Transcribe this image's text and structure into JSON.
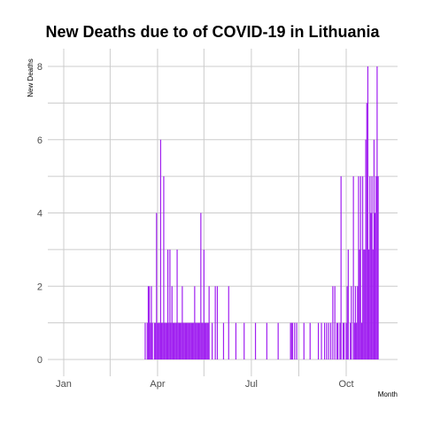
{
  "chart_data": {
    "type": "bar",
    "title": "New Deaths due to of COVID-19 in Lithuania",
    "xlabel": "Month",
    "ylabel": "New Deaths",
    "x_ticks": [
      "Jan",
      "Apr",
      "Jul",
      "Oct"
    ],
    "y_ticks": [
      "0",
      "2",
      "4",
      "6",
      "8"
    ],
    "ylim": [
      0,
      8
    ],
    "grid": true,
    "bar_color": "#a020f0",
    "grid_color": "#cccccc",
    "series": [
      {
        "x": [
          "2020-03-20",
          "2020-03-22",
          "2020-03-23",
          "2020-03-24",
          "2020-03-25",
          "2020-03-26",
          "2020-03-27",
          "2020-03-29",
          "2020-03-30",
          "2020-03-31",
          "2020-04-01",
          "2020-04-02",
          "2020-04-03",
          "2020-04-04",
          "2020-04-05",
          "2020-04-06",
          "2020-04-07",
          "2020-04-08",
          "2020-04-09",
          "2020-04-10",
          "2020-04-11",
          "2020-04-12",
          "2020-04-13",
          "2020-04-14",
          "2020-04-15",
          "2020-04-16",
          "2020-04-17",
          "2020-04-18",
          "2020-04-19",
          "2020-04-20",
          "2020-04-21",
          "2020-04-22",
          "2020-04-23",
          "2020-04-24",
          "2020-04-25",
          "2020-04-26",
          "2020-04-27",
          "2020-04-28",
          "2020-04-29",
          "2020-04-30",
          "2020-05-01",
          "2020-05-02",
          "2020-05-03",
          "2020-05-04",
          "2020-05-05",
          "2020-05-06",
          "2020-05-07",
          "2020-05-08",
          "2020-05-09",
          "2020-05-10",
          "2020-05-11",
          "2020-05-12",
          "2020-05-13",
          "2020-05-14",
          "2020-05-15",
          "2020-05-16",
          "2020-05-17",
          "2020-05-18",
          "2020-05-19",
          "2020-05-20",
          "2020-05-21",
          "2020-05-24",
          "2020-05-27",
          "2020-05-29",
          "2020-06-04",
          "2020-06-09",
          "2020-06-16",
          "2020-06-24",
          "2020-07-05",
          "2020-07-16",
          "2020-07-27",
          "2020-08-08",
          "2020-08-09",
          "2020-08-10",
          "2020-08-12",
          "2020-08-14",
          "2020-08-21",
          "2020-08-27",
          "2020-09-04",
          "2020-09-07",
          "2020-09-10",
          "2020-09-12",
          "2020-09-14",
          "2020-09-16",
          "2020-09-18",
          "2020-09-20",
          "2020-09-22",
          "2020-09-23",
          "2020-09-25",
          "2020-09-26",
          "2020-09-28",
          "2020-09-29",
          "2020-10-01",
          "2020-10-02",
          "2020-10-03",
          "2020-10-05",
          "2020-10-06",
          "2020-10-08",
          "2020-10-09",
          "2020-10-10",
          "2020-10-11",
          "2020-10-12",
          "2020-10-13",
          "2020-10-14",
          "2020-10-15",
          "2020-10-16",
          "2020-10-17",
          "2020-10-18",
          "2020-10-19",
          "2020-10-20",
          "2020-10-21",
          "2020-10-22",
          "2020-10-23",
          "2020-10-24",
          "2020-10-25",
          "2020-10-26",
          "2020-10-27",
          "2020-10-28",
          "2020-10-29",
          "2020-10-30",
          "2020-10-31",
          "2020-11-01"
        ],
        "values": [
          1,
          1,
          2,
          2,
          1,
          2,
          1,
          1,
          1,
          4,
          1,
          1,
          1,
          6,
          1,
          1,
          5,
          1,
          1,
          1,
          3,
          1,
          3,
          1,
          2,
          1,
          1,
          1,
          1,
          3,
          1,
          1,
          1,
          1,
          2,
          1,
          1,
          1,
          1,
          1,
          1,
          1,
          1,
          1,
          1,
          1,
          2,
          1,
          1,
          1,
          1,
          1,
          4,
          1,
          1,
          3,
          1,
          1,
          1,
          1,
          2,
          1,
          2,
          2,
          1,
          2,
          1,
          1,
          1,
          1,
          1,
          1,
          1,
          1,
          1,
          1,
          1,
          1,
          1,
          1,
          1,
          1,
          1,
          1,
          2,
          2,
          1,
          1,
          1,
          5,
          1,
          1,
          1,
          2,
          3,
          1,
          2,
          5,
          1,
          2,
          1,
          2,
          5,
          3,
          5,
          1,
          5,
          3,
          3,
          6,
          7,
          8,
          3,
          5,
          4,
          5,
          3,
          6,
          4,
          5,
          8,
          5
        ]
      }
    ]
  }
}
